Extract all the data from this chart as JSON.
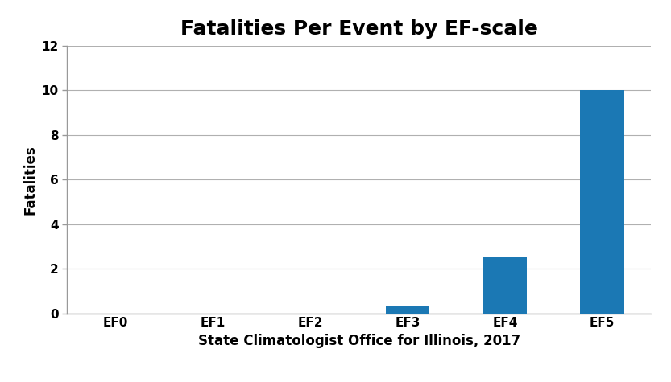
{
  "title": "Fatalities Per Event by EF-scale",
  "categories": [
    "EF0",
    "EF1",
    "EF2",
    "EF3",
    "EF4",
    "EF5"
  ],
  "values": [
    0,
    0,
    0,
    0.35,
    2.5,
    10.0
  ],
  "bar_color": "#1B78B4",
  "ylabel": "Fatalities",
  "xlabel": "State Climatologist Office for Illinois, 2017",
  "ylim": [
    0,
    12
  ],
  "yticks": [
    0,
    2,
    4,
    6,
    8,
    10,
    12
  ],
  "background_color": "#ffffff",
  "title_fontsize": 18,
  "label_fontsize": 12,
  "tick_fontsize": 11,
  "grid_color": "#b0b0b0",
  "bar_width": 0.45
}
